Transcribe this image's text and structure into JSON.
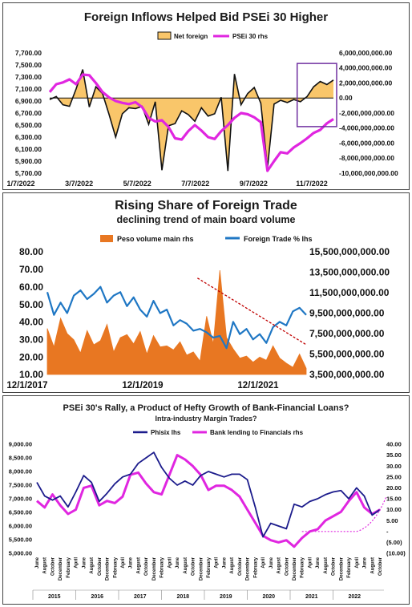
{
  "chart_data": [
    {
      "type": "line",
      "title": "Foreign Inflows Helped Bid PSEi 30 Higher",
      "x_tick_labels": [
        "1/7/2022",
        "3/7/2022",
        "5/7/2022",
        "7/7/2022",
        "9/7/2022",
        "11/7/2022"
      ],
      "ylim_left": [
        5700,
        7700
      ],
      "y_left_ticks": [
        "7,700.00",
        "7,500.00",
        "7,300.00",
        "7,100.00",
        "6,900.00",
        "6,700.00",
        "6,500.00",
        "6,300.00",
        "6,100.00",
        "5,900.00",
        "5,700.00"
      ],
      "ylim_right": [
        -10000000000,
        6000000000
      ],
      "y_right_ticks": [
        "6,000,000,000.00",
        "4,000,000,000.00",
        "2,000,000,000.00",
        "0.00",
        "-2,000,000,000.00",
        "-4,000,000,000.00",
        "-6,000,000,000.00",
        "-8,000,000,000.00",
        "-10,000,000,000.00"
      ],
      "legend_position": "top-right",
      "colors": {
        "net_foreign_fill": "#F9C66A",
        "net_foreign_line": "#111111",
        "psei": "#E026E0",
        "highlight_box": "#7030A0"
      },
      "series": [
        {
          "name": "Net foreign",
          "axis": "right",
          "kind": "area",
          "values": [
            -200000000,
            200000000,
            -900000000,
            -1100000000,
            1200000000,
            3800000000,
            -1200000000,
            1500000000,
            600000000,
            -2200000000,
            -5200000000,
            -2100000000,
            -1300000000,
            -1400000000,
            -1100000000,
            -3500000000,
            -500000000,
            -9600000000,
            -3700000000,
            -3400000000,
            -1700000000,
            -2200000000,
            -3100000000,
            -1300000000,
            -2400000000,
            -2100000000,
            100000000,
            -9700000000,
            3200000000,
            -900000000,
            600000000,
            1400000000,
            -700000000,
            -9300000000,
            -800000000,
            -300000000,
            -600000000,
            -200000000,
            -500000000,
            200000000,
            1500000000,
            2200000000,
            1800000000,
            2400000000
          ]
        },
        {
          "name": "PSEi 30 rhs",
          "axis": "left",
          "kind": "line",
          "values": [
            7050,
            7180,
            7210,
            7260,
            7180,
            7340,
            7330,
            7200,
            7050,
            6960,
            6900,
            6870,
            6850,
            6880,
            6800,
            6620,
            6560,
            6580,
            6470,
            6280,
            6260,
            6400,
            6500,
            6410,
            6300,
            6270,
            6400,
            6500,
            6620,
            6700,
            6680,
            6630,
            6550,
            5740,
            5900,
            6050,
            6030,
            6130,
            6200,
            6280,
            6370,
            6420,
            6530,
            6600
          ]
        }
      ]
    },
    {
      "type": "line",
      "title": "Rising Share of Foreign Trade",
      "subtitle": "declining trend of main board volume",
      "x_tick_labels": [
        "12/1/2017",
        "12/1/2019",
        "12/1/2021"
      ],
      "ylim_left": [
        10,
        80
      ],
      "y_left_ticks": [
        "80.00",
        "70.00",
        "60.00",
        "50.00",
        "40.00",
        "30.00",
        "20.00",
        "10.00"
      ],
      "ylim_right": [
        3500000000,
        15500000000
      ],
      "y_right_ticks": [
        "15,500,000,000.00",
        "13,500,000,000.00",
        "11,500,000,000.00",
        "9,500,000,000.00",
        "7,500,000,000.00",
        "5,500,000,000.00",
        "3,500,000,000.00"
      ],
      "legend_position": "top",
      "colors": {
        "peso_volume": "#E87722",
        "foreign_trade": "#1F77C4",
        "trend": "#C00000"
      },
      "series": [
        {
          "name": "Peso volume main rhs",
          "axis": "right",
          "kind": "area",
          "values": [
            8000000000,
            6200000000,
            9000000000,
            7500000000,
            6900000000,
            5600000000,
            7800000000,
            6400000000,
            6800000000,
            8400000000,
            5700000000,
            7100000000,
            7400000000,
            6500000000,
            7700000000,
            5500000000,
            7300000000,
            6200000000,
            6300000000,
            5900000000,
            6700000000,
            5400000000,
            5700000000,
            4800000000,
            9200000000,
            6500000000,
            13700000000,
            7100000000,
            6000000000,
            5100000000,
            5300000000,
            4700000000,
            5200000000,
            4900000000,
            6300000000,
            5100000000,
            4600000000,
            4200000000,
            5500000000,
            4100000000
          ]
        },
        {
          "name": "Foreign Trade % lhs",
          "axis": "left",
          "kind": "line",
          "values": [
            57,
            44,
            51,
            45,
            55,
            58,
            53,
            56,
            60,
            51,
            55,
            57,
            49,
            54,
            47,
            43,
            52,
            45,
            47,
            38,
            41,
            39,
            35,
            36,
            34,
            31,
            32,
            25,
            40,
            33,
            36,
            30,
            33,
            28,
            37,
            40,
            38,
            46,
            48,
            44
          ]
        },
        {
          "name": "",
          "axis": "left",
          "kind": "trend",
          "values": [
            65,
            27
          ]
        }
      ]
    },
    {
      "type": "line",
      "title": "PSEi 30's Rally, a Product of Hefty Growth of Bank-Financial Loans?",
      "subtitle": "Intra-industry Margin Trades?",
      "years": [
        "2015",
        "2016",
        "2017",
        "2018",
        "2019",
        "2020",
        "2021",
        "2022"
      ],
      "month_labels": [
        "June",
        "August",
        "October",
        "December",
        "February",
        "April",
        "June",
        "August",
        "October",
        "December",
        "February",
        "April",
        "June",
        "August",
        "October",
        "December",
        "February",
        "April",
        "June",
        "August",
        "October",
        "December",
        "February",
        "April",
        "June",
        "August",
        "October",
        "December",
        "February",
        "April",
        "June",
        "August",
        "October",
        "December",
        "February",
        "April",
        "June",
        "August",
        "October",
        "December",
        "February",
        "April",
        "June",
        "August",
        "October"
      ],
      "ylim_left": [
        5000,
        9000
      ],
      "y_left_ticks": [
        "9,000.00",
        "8,500.00",
        "8,000.00",
        "7,500.00",
        "7,000.00",
        "6,500.00",
        "6,000.00",
        "5,500.00",
        "5,000.00"
      ],
      "ylim_right": [
        -10,
        40
      ],
      "y_right_ticks": [
        "40.00",
        "35.00",
        "30.00",
        "25.00",
        "20.00",
        "15.00",
        "10.00",
        "5.00",
        "-",
        "(5.00)",
        "(10.00)"
      ],
      "legend_position": "top",
      "colors": {
        "phisix": "#1C1C8C",
        "bank_lending": "#E026E0"
      },
      "series": [
        {
          "name": "Phisix lhs",
          "axis": "left",
          "values": [
            7600,
            7100,
            6950,
            7100,
            6700,
            7250,
            7850,
            7600,
            6900,
            7200,
            7550,
            7800,
            7900,
            8300,
            8500,
            8700,
            8150,
            7750,
            7500,
            7650,
            7500,
            7850,
            8000,
            7900,
            7800,
            7900,
            7900,
            7700,
            6700,
            5600,
            6100,
            6000,
            5900,
            6800,
            6700,
            6900,
            7000,
            7150,
            7250,
            7300,
            7000,
            7400,
            7100,
            6400,
            6600
          ]
        },
        {
          "name": "Bank lending to Financials rhs",
          "axis": "right",
          "values": [
            14,
            11,
            17,
            12,
            8,
            10,
            20,
            21,
            12,
            14,
            13,
            16,
            26,
            27,
            22,
            18,
            17,
            26,
            35,
            33,
            30,
            26,
            19,
            21,
            21,
            19,
            16,
            10,
            4,
            -2,
            -4,
            -5,
            -4,
            -7,
            -3,
            0,
            1,
            5,
            7,
            9,
            14,
            18,
            11,
            8,
            10
          ]
        }
      ]
    }
  ]
}
